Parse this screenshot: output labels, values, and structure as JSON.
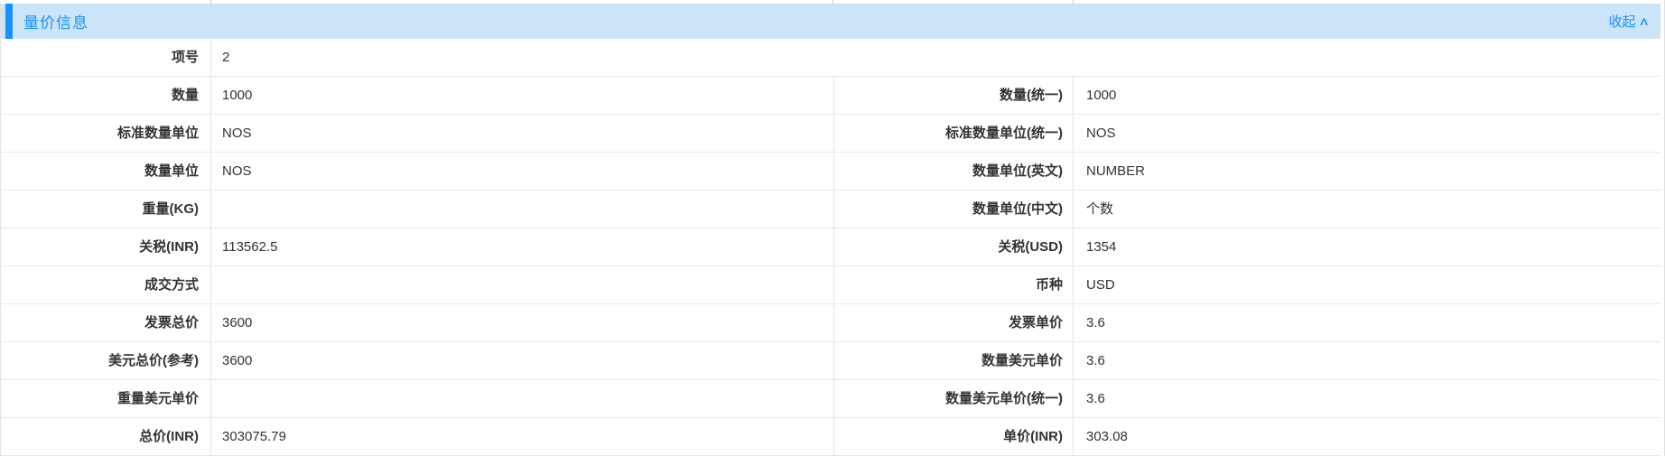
{
  "header": {
    "title": "量价信息",
    "collapse_label": "收起",
    "collapse_icon": "∧"
  },
  "colors": {
    "accent": "#1890ff",
    "header_bg": "#cce4f8",
    "title_color": "#1890ff",
    "label_color": "#333333",
    "value_color": "#333333",
    "row_border": "#e8e8e8"
  },
  "rows": [
    {
      "left_label": "项号",
      "left_value": "2",
      "full_width": true
    },
    {
      "left_label": "数量",
      "left_value": "1000",
      "right_label": "数量(统一)",
      "right_value": "1000"
    },
    {
      "left_label": "标准数量单位",
      "left_value": "NOS",
      "right_label": "标准数量单位(统一)",
      "right_value": "NOS"
    },
    {
      "left_label": "数量单位",
      "left_value": "NOS",
      "right_label": "数量单位(英文)",
      "right_value": "NUMBER"
    },
    {
      "left_label": "重量(KG)",
      "left_value": "",
      "right_label": "数量单位(中文)",
      "right_value": "个数"
    },
    {
      "left_label": "关税(INR)",
      "left_value": "113562.5",
      "right_label": "关税(USD)",
      "right_value": "1354"
    },
    {
      "left_label": "成交方式",
      "left_value": "",
      "right_label": "币种",
      "right_value": "USD"
    },
    {
      "left_label": "发票总价",
      "left_value": "3600",
      "right_label": "发票单价",
      "right_value": "3.6"
    },
    {
      "left_label": "美元总价(参考)",
      "left_value": "3600",
      "right_label": "数量美元单价",
      "right_value": "3.6"
    },
    {
      "left_label": "重量美元单价",
      "left_value": "",
      "right_label": "数量美元单价(统一)",
      "right_value": "3.6"
    },
    {
      "left_label": "总价(INR)",
      "left_value": "303075.79",
      "right_label": "单价(INR)",
      "right_value": "303.08"
    }
  ]
}
